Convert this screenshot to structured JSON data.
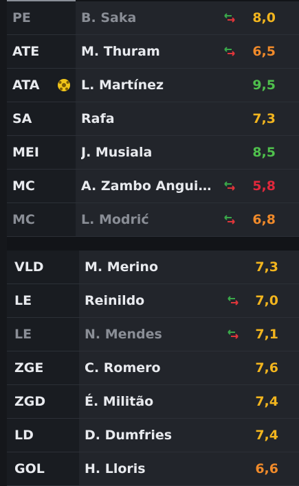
{
  "colors": {
    "rating_green": "#4fc04c",
    "rating_yellow": "#f2b51e",
    "rating_orange": "#f08a2a",
    "rating_red": "#e0283c",
    "sub_green": "#3aa84a",
    "sub_red": "#e0363a",
    "ball": "#f0c419"
  },
  "starters": [
    {
      "position": "PE",
      "name": "B. Saka",
      "rating": "8,0",
      "rating_color": "#f2b51e",
      "subbed": true,
      "dim": true,
      "goal": false
    },
    {
      "position": "ATE",
      "name": "M. Thuram",
      "rating": "6,5",
      "rating_color": "#f08a2a",
      "subbed": true,
      "dim": false,
      "goal": false
    },
    {
      "position": "ATA",
      "name": "L. Martínez",
      "rating": "9,5",
      "rating_color": "#4fc04c",
      "subbed": false,
      "dim": false,
      "goal": true
    },
    {
      "position": "SA",
      "name": "Rafa",
      "rating": "7,3",
      "rating_color": "#f2b51e",
      "subbed": false,
      "dim": false,
      "goal": false
    },
    {
      "position": "MEI",
      "name": "J. Musiala",
      "rating": "8,5",
      "rating_color": "#4fc04c",
      "subbed": false,
      "dim": false,
      "goal": false
    },
    {
      "position": "MC",
      "name": "A. Zambo Anguis...",
      "rating": "5,8",
      "rating_color": "#e0283c",
      "subbed": true,
      "dim": false,
      "goal": false
    },
    {
      "position": "MC",
      "name": "L. Modrić",
      "rating": "6,8",
      "rating_color": "#f08a2a",
      "subbed": true,
      "dim": true,
      "goal": false
    }
  ],
  "defenders": [
    {
      "position": "VLD",
      "name": "M. Merino",
      "rating": "7,3",
      "rating_color": "#f2b51e",
      "subbed": false,
      "dim": false
    },
    {
      "position": "LE",
      "name": "Reinildo",
      "rating": "7,0",
      "rating_color": "#f2b51e",
      "subbed": true,
      "dim": false
    },
    {
      "position": "LE",
      "name": "N. Mendes",
      "rating": "7,1",
      "rating_color": "#f2b51e",
      "subbed": true,
      "dim": true
    },
    {
      "position": "ZGE",
      "name": "C. Romero",
      "rating": "7,6",
      "rating_color": "#f2b51e",
      "subbed": false,
      "dim": false
    },
    {
      "position": "ZGD",
      "name": "É. Militão",
      "rating": "7,4",
      "rating_color": "#f2b51e",
      "subbed": false,
      "dim": false
    },
    {
      "position": "LD",
      "name": "D. Dumfries",
      "rating": "7,4",
      "rating_color": "#f2b51e",
      "subbed": false,
      "dim": false
    },
    {
      "position": "GOL",
      "name": "H. Lloris",
      "rating": "6,6",
      "rating_color": "#f08a2a",
      "subbed": false,
      "dim": false
    }
  ]
}
